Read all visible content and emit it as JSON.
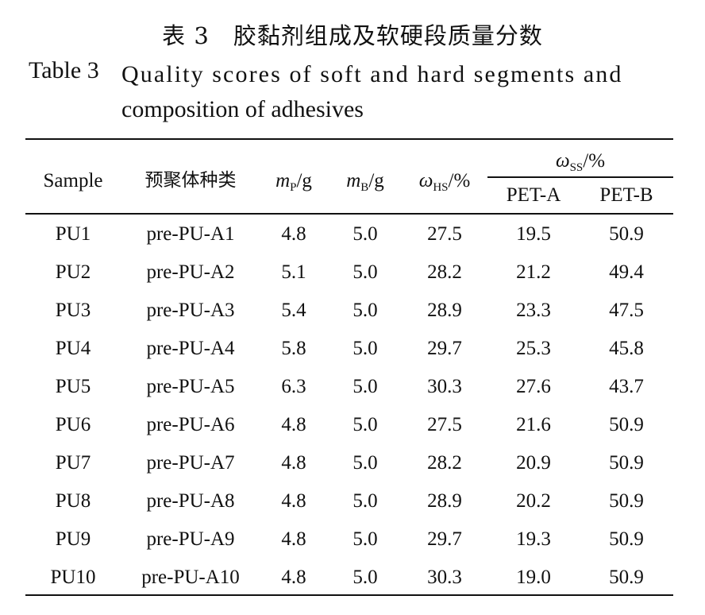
{
  "title": {
    "cn": "表 3　胶黏剂组成及软硬段质量分数",
    "en_label": "Table 3",
    "en_line1": "Quality scores of soft and hard segments and",
    "en_line2": "composition of adhesives"
  },
  "table": {
    "headers": {
      "sample": "Sample",
      "prepolymer": "预聚体种类",
      "mp_base": "m",
      "mp_sub": "P",
      "mp_unit": "/g",
      "mb_base": "m",
      "mb_sub": "B",
      "mb_unit": "/g",
      "whs_base": "ω",
      "whs_sub": "HS",
      "whs_unit": "/%",
      "wss_base": "ω",
      "wss_sub": "SS",
      "wss_unit": "/%",
      "pet_a": "PET-A",
      "pet_b": "PET-B"
    },
    "rows": [
      {
        "sample": "PU1",
        "pre": "pre-PU-A1",
        "mp": "4.8",
        "mb": "5.0",
        "whs": "27.5",
        "pet_a": "19.5",
        "pet_b": "50.9"
      },
      {
        "sample": "PU2",
        "pre": "pre-PU-A2",
        "mp": "5.1",
        "mb": "5.0",
        "whs": "28.2",
        "pet_a": "21.2",
        "pet_b": "49.4"
      },
      {
        "sample": "PU3",
        "pre": "pre-PU-A3",
        "mp": "5.4",
        "mb": "5.0",
        "whs": "28.9",
        "pet_a": "23.3",
        "pet_b": "47.5"
      },
      {
        "sample": "PU4",
        "pre": "pre-PU-A4",
        "mp": "5.8",
        "mb": "5.0",
        "whs": "29.7",
        "pet_a": "25.3",
        "pet_b": "45.8"
      },
      {
        "sample": "PU5",
        "pre": "pre-PU-A5",
        "mp": "6.3",
        "mb": "5.0",
        "whs": "30.3",
        "pet_a": "27.6",
        "pet_b": "43.7"
      },
      {
        "sample": "PU6",
        "pre": "pre-PU-A6",
        "mp": "4.8",
        "mb": "5.0",
        "whs": "27.5",
        "pet_a": "21.6",
        "pet_b": "50.9"
      },
      {
        "sample": "PU7",
        "pre": "pre-PU-A7",
        "mp": "4.8",
        "mb": "5.0",
        "whs": "28.2",
        "pet_a": "20.9",
        "pet_b": "50.9"
      },
      {
        "sample": "PU8",
        "pre": "pre-PU-A8",
        "mp": "4.8",
        "mb": "5.0",
        "whs": "28.9",
        "pet_a": "20.2",
        "pet_b": "50.9"
      },
      {
        "sample": "PU9",
        "pre": "pre-PU-A9",
        "mp": "4.8",
        "mb": "5.0",
        "whs": "29.7",
        "pet_a": "19.3",
        "pet_b": "50.9"
      },
      {
        "sample": "PU10",
        "pre": "pre-PU-A10",
        "mp": "4.8",
        "mb": "5.0",
        "whs": "30.3",
        "pet_a": "19.0",
        "pet_b": "50.9"
      }
    ]
  }
}
